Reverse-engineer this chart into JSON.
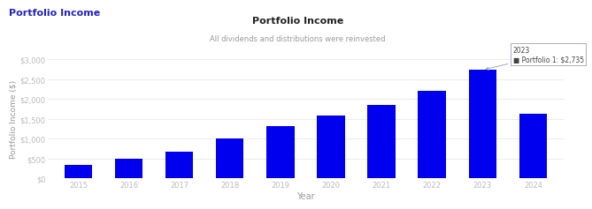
{
  "title": "Portfolio Income",
  "subtitle": "All dividends and distributions were reinvested",
  "top_left_label": "Portfolio Income",
  "xlabel": "Year",
  "ylabel": "Portfolio Income ($)",
  "years": [
    2015,
    2016,
    2017,
    2018,
    2019,
    2020,
    2021,
    2022,
    2023,
    2024
  ],
  "values": [
    350,
    500,
    680,
    1000,
    1320,
    1580,
    1850,
    2200,
    2735,
    1620
  ],
  "bar_color": "#0000ee",
  "highlight_year": 2023,
  "tooltip_label": "Portfolio 1: $2,735",
  "ylim": [
    0,
    3000
  ],
  "yticks": [
    0,
    500,
    1000,
    1500,
    2000,
    2500,
    3000
  ],
  "background_color": "#ffffff",
  "grid_color": "#e8e8e8",
  "top_left_label_color": "#2222cc",
  "title_color": "#222222",
  "subtitle_color": "#999999",
  "axis_label_color": "#999999",
  "tick_color": "#bbbbbb"
}
